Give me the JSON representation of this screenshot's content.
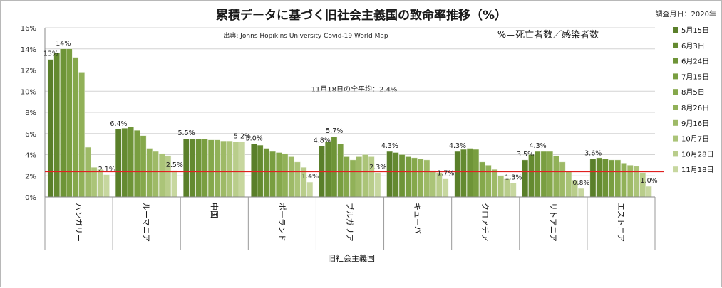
{
  "chart_data": {
    "type": "bar",
    "title": "累積データに基づく旧社会主義国の致命率推移（%）",
    "survey_note": "調査月日：2020年",
    "source": "出典: Johns Hopikins University   Covid-19 World Map",
    "formula": "%＝死亡者数／感染者数",
    "average_note": "11月18日の全平均：2.4%",
    "average_value": 2.4,
    "xlabel": "旧社会主義国",
    "ylabel": "",
    "ylim": [
      0,
      16
    ],
    "yticks": [
      "0%",
      "2%",
      "4%",
      "6%",
      "8%",
      "10%",
      "12%",
      "14%",
      "16%"
    ],
    "grid": true,
    "legend_position": "right",
    "categories": [
      "ハンガリー",
      "ルーマニア",
      "中国",
      "ポーランド",
      "ブルガリア",
      "キューバ",
      "クロアチア",
      "リトアニア",
      "エストニア"
    ],
    "series": [
      {
        "name": "5月15日",
        "values": [
          13.0,
          6.4,
          5.5,
          5.0,
          4.8,
          4.3,
          4.3,
          3.5,
          3.6
        ]
      },
      {
        "name": "6月3日",
        "values": [
          13.6,
          6.5,
          5.5,
          4.9,
          5.2,
          4.2,
          4.5,
          4.0,
          3.7
        ]
      },
      {
        "name": "6月24日",
        "values": [
          14.0,
          6.6,
          5.5,
          4.6,
          5.7,
          4.0,
          4.6,
          4.3,
          3.6
        ]
      },
      {
        "name": "7月15日",
        "values": [
          14.0,
          6.3,
          5.5,
          4.3,
          5.0,
          3.8,
          4.5,
          4.3,
          3.5
        ]
      },
      {
        "name": "8月5日",
        "values": [
          13.2,
          5.8,
          5.4,
          4.2,
          3.8,
          3.7,
          3.3,
          4.3,
          3.5
        ]
      },
      {
        "name": "8月26日",
        "values": [
          11.8,
          4.6,
          5.4,
          4.1,
          3.5,
          3.6,
          3.0,
          3.9,
          3.2
        ]
      },
      {
        "name": "9月16日",
        "values": [
          4.7,
          4.3,
          5.3,
          3.8,
          3.8,
          3.5,
          2.6,
          3.3,
          3.0
        ]
      },
      {
        "name": "10月7日",
        "values": [
          2.8,
          4.1,
          5.3,
          3.3,
          4.0,
          2.5,
          2.0,
          2.4,
          2.9
        ]
      },
      {
        "name": "10月28日",
        "values": [
          2.6,
          3.9,
          5.2,
          2.8,
          3.8,
          2.3,
          1.7,
          1.6,
          2.3
        ]
      },
      {
        "name": "11月18日",
        "values": [
          2.1,
          2.5,
          5.2,
          1.4,
          2.3,
          1.7,
          1.3,
          0.8,
          1.0
        ]
      }
    ],
    "data_labels": [
      {
        "category": 0,
        "series": 0,
        "text": "13%"
      },
      {
        "category": 0,
        "series": 2,
        "text": "14%"
      },
      {
        "category": 0,
        "series": 9,
        "text": "2.1%"
      },
      {
        "category": 1,
        "series": 0,
        "text": "6.4%"
      },
      {
        "category": 1,
        "series": 9,
        "text": "2.5%"
      },
      {
        "category": 2,
        "series": 0,
        "text": "5.5%"
      },
      {
        "category": 2,
        "series": 9,
        "text": "5.2%"
      },
      {
        "category": 3,
        "series": 0,
        "text": "5.0%"
      },
      {
        "category": 3,
        "series": 9,
        "text": "1.4%"
      },
      {
        "category": 4,
        "series": 0,
        "text": "4.8%"
      },
      {
        "category": 4,
        "series": 2,
        "text": "5.7%"
      },
      {
        "category": 4,
        "series": 9,
        "text": "2.3%"
      },
      {
        "category": 5,
        "series": 0,
        "text": "4.3%"
      },
      {
        "category": 5,
        "series": 9,
        "text": "1.7%"
      },
      {
        "category": 6,
        "series": 0,
        "text": "4.3%"
      },
      {
        "category": 6,
        "series": 9,
        "text": "1.3%"
      },
      {
        "category": 7,
        "series": 0,
        "text": "3.5%"
      },
      {
        "category": 7,
        "series": 2,
        "text": "4.3%"
      },
      {
        "category": 7,
        "series": 9,
        "text": "0.8%"
      },
      {
        "category": 8,
        "series": 0,
        "text": "3.6%"
      },
      {
        "category": 8,
        "series": 9,
        "text": "1.0%"
      }
    ],
    "series_colors": [
      "#5a7f2a",
      "#648a30",
      "#6e9437",
      "#799e40",
      "#85a84b",
      "#91b158",
      "#9eba67",
      "#abc478",
      "#b9cd8b",
      "#c7d79f"
    ],
    "average_line_color": "#e02020"
  }
}
